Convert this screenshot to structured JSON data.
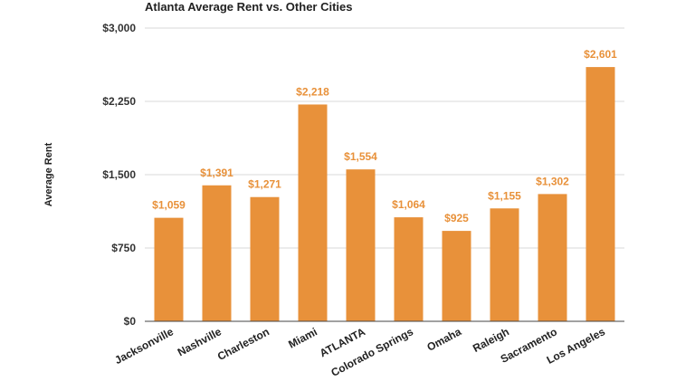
{
  "chart_data": {
    "type": "bar",
    "title": "Atlanta Average Rent vs. Other Cities",
    "ylabel": "Average Rent",
    "xlabel": "",
    "categories": [
      "Jacksonville",
      "Nashville",
      "Charleston",
      "Miami",
      "ATLANTA",
      "Colorado Springs",
      "Omaha",
      "Raleigh",
      "Sacramento",
      "Los Angeles"
    ],
    "values": [
      1059,
      1391,
      1271,
      2218,
      1554,
      1064,
      925,
      1155,
      1302,
      2601
    ],
    "data_labels": [
      "$1,059",
      "$1,391",
      "$1,271",
      "$2,218",
      "$1,554",
      "$1,064",
      "$925",
      "$1,155",
      "$1,302",
      "$2,601"
    ],
    "yticks": [
      0,
      750,
      1500,
      2250,
      3000
    ],
    "ytick_labels": [
      "$0",
      "$750",
      "$1,500",
      "$2,250",
      "$3,000"
    ],
    "ylim": [
      0,
      3000
    ],
    "grid": true,
    "legend": "none",
    "colors": {
      "bar": "#e8913a",
      "label": "#e8913a"
    }
  }
}
